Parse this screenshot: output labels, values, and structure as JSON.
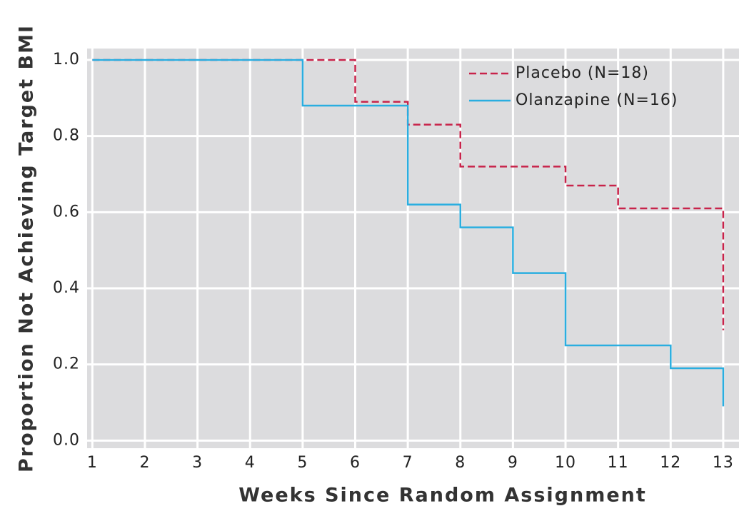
{
  "chart_data": {
    "type": "step",
    "x_label": "Weeks Since Random Assignment",
    "y_label": "Proportion Not Achieving Target BMI",
    "xlim": [
      0.9,
      13.3
    ],
    "ylim": [
      -0.02,
      1.03
    ],
    "xticks": [
      1,
      2,
      3,
      4,
      5,
      6,
      7,
      8,
      9,
      10,
      11,
      12,
      13
    ],
    "yticks": [
      {
        "value": 0,
        "label": "0.0"
      },
      0.2,
      0.4,
      0.6,
      0.8,
      {
        "value": 1,
        "label": "1.0"
      }
    ],
    "grid": true,
    "legend": "upper right",
    "series": [
      {
        "name": "Placebo (N=18)",
        "color": "#c8234a",
        "dashed": true,
        "x": [
          1,
          6,
          7,
          8,
          10,
          11,
          13
        ],
        "values": [
          1.0,
          0.89,
          0.83,
          0.72,
          0.67,
          0.61,
          0.29
        ]
      },
      {
        "name": "Olanzapine (N=16)",
        "color": "#2aaee0",
        "dashed": false,
        "x": [
          1,
          5,
          7,
          8,
          9,
          10,
          12,
          13
        ],
        "values": [
          1.0,
          0.88,
          0.62,
          0.56,
          0.44,
          0.25,
          0.19,
          0.09
        ]
      }
    ]
  }
}
